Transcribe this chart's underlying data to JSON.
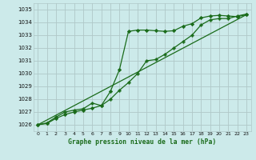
{
  "title": "Graphe pression niveau de la mer (hPa)",
  "bg_color": "#cceaea",
  "grid_color": "#b0c8c8",
  "line_color": "#1a6b1a",
  "xlim": [
    -0.5,
    23.5
  ],
  "ylim": [
    1025.5,
    1035.5
  ],
  "yticks": [
    1026,
    1027,
    1028,
    1029,
    1030,
    1031,
    1032,
    1033,
    1034,
    1035
  ],
  "xticks": [
    0,
    1,
    2,
    3,
    4,
    5,
    6,
    7,
    8,
    9,
    10,
    11,
    12,
    13,
    14,
    15,
    16,
    17,
    18,
    19,
    20,
    21,
    22,
    23
  ],
  "series1_x": [
    0,
    1,
    2,
    3,
    4,
    5,
    6,
    7,
    8,
    9,
    10,
    11,
    12,
    13,
    14,
    15,
    16,
    17,
    18,
    19,
    20,
    21,
    22,
    23
  ],
  "series1_y": [
    1026.0,
    1026.1,
    1026.5,
    1026.8,
    1027.0,
    1027.15,
    1027.3,
    1027.5,
    1028.6,
    1030.3,
    1033.3,
    1033.4,
    1033.4,
    1033.35,
    1033.3,
    1033.35,
    1033.7,
    1033.9,
    1034.35,
    1034.5,
    1034.55,
    1034.5,
    1034.45,
    1034.6
  ],
  "series2_x": [
    0,
    1,
    2,
    3,
    4,
    5,
    6,
    7,
    8,
    9,
    10,
    11,
    12,
    13,
    14,
    15,
    16,
    17,
    18,
    19,
    20,
    21,
    22,
    23
  ],
  "series2_y": [
    1026.0,
    1026.15,
    1026.6,
    1027.0,
    1027.15,
    1027.25,
    1027.7,
    1027.5,
    1028.0,
    1028.7,
    1029.3,
    1030.0,
    1031.0,
    1031.1,
    1031.5,
    1032.0,
    1032.5,
    1033.0,
    1033.8,
    1034.2,
    1034.3,
    1034.3,
    1034.5,
    1034.65
  ],
  "series3_x": [
    0,
    23
  ],
  "series3_y": [
    1026.0,
    1034.6
  ]
}
